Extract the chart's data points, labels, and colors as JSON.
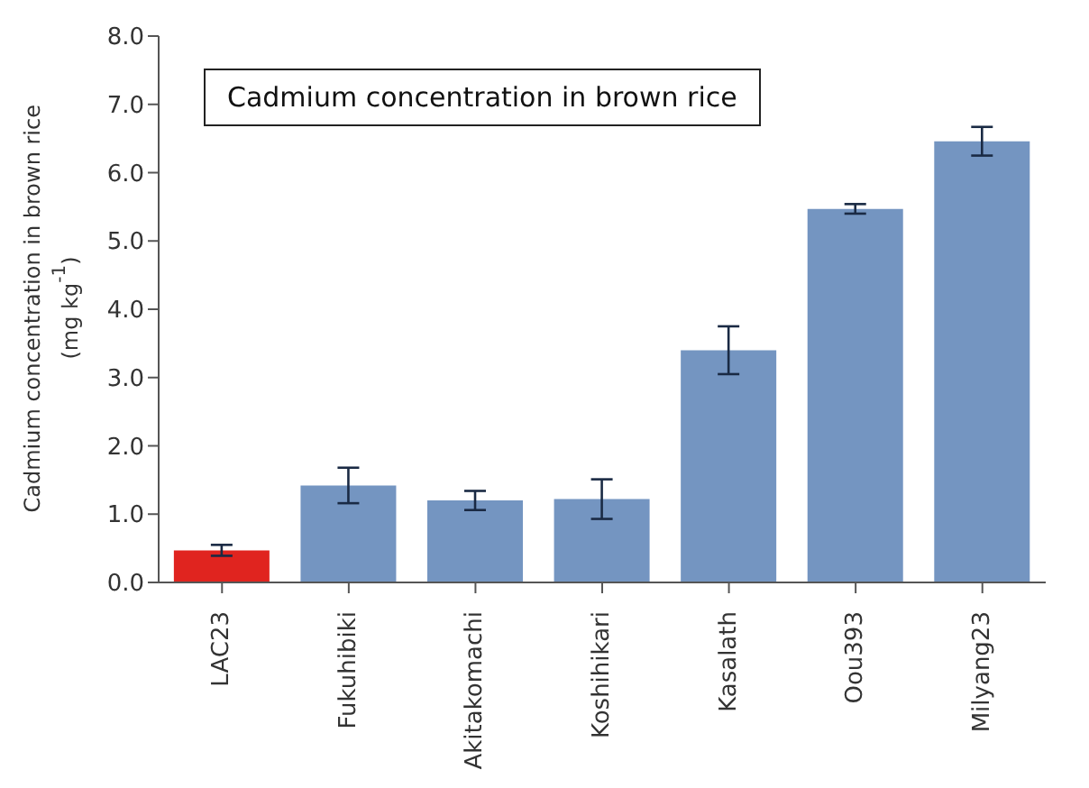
{
  "chart_data": {
    "type": "bar",
    "title": "Cadmium concentration in brown rice",
    "ylabel": "Cadmium concentration in brown rice\n(mg kg$^{-1}$)",
    "categories": [
      "LAC23",
      "Fukuhibiki",
      "Akitakomachi",
      "Koshihikari",
      "Kasalath",
      "Oou393",
      "Milyang23"
    ],
    "values": [
      0.47,
      1.42,
      1.2,
      1.22,
      3.4,
      5.47,
      6.46
    ],
    "errors": [
      0.08,
      0.26,
      0.14,
      0.29,
      0.35,
      0.07,
      0.21
    ],
    "colors": [
      "#e0241f",
      "#7495c1",
      "#7495c1",
      "#7495c1",
      "#7495c1",
      "#7495c1",
      "#7495c1"
    ],
    "ylim": [
      0,
      8
    ],
    "yticks": [
      {
        "value": 0,
        "label": "0.0"
      },
      {
        "value": 1,
        "label": "1.0"
      },
      {
        "value": 2,
        "label": "2.0"
      },
      {
        "value": 3,
        "label": "3.0"
      },
      {
        "value": 4,
        "label": "4.0"
      },
      {
        "value": 5,
        "label": "5.0"
      },
      {
        "value": 6,
        "label": "6.0"
      },
      {
        "value": 7,
        "label": "7.0"
      },
      {
        "value": 8,
        "label": "8.0"
      }
    ],
    "grid": false
  }
}
